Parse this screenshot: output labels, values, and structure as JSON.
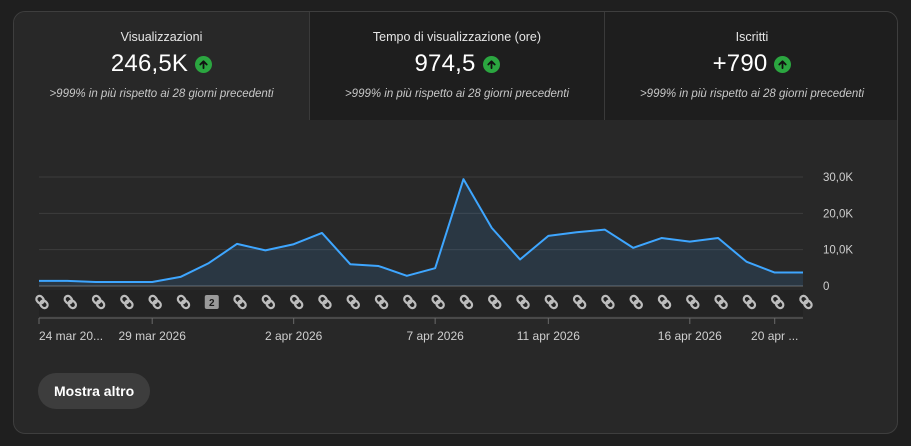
{
  "metrics": [
    {
      "label": "Visualizzazioni",
      "value": "246,5K",
      "comparison": ">999% in più rispetto ai 28 giorni precedenti"
    },
    {
      "label": "Tempo di visualizzazione (ore)",
      "value": "974,5",
      "comparison": ">999% in più rispetto ai 28 giorni precedenti"
    },
    {
      "label": "Iscritti",
      "value": "+790",
      "comparison": ">999% in più rispetto ai 28 giorni precedenti"
    }
  ],
  "chart_data": {
    "type": "area",
    "y_ticks": [
      "30,0K",
      "20,0K",
      "10,0K",
      "0"
    ],
    "ylim": [
      0,
      30000
    ],
    "grid": true,
    "x_labels": [
      {
        "index": 0,
        "label": "24 mar 20..."
      },
      {
        "index": 4,
        "label": "29 mar 2026"
      },
      {
        "index": 9,
        "label": "2 apr 2026"
      },
      {
        "index": 14,
        "label": "7 apr 2026"
      },
      {
        "index": 18,
        "label": "11 apr 2026"
      },
      {
        "index": 23,
        "label": "16 apr 2026"
      },
      {
        "index": 26,
        "label": "20 apr ..."
      }
    ],
    "series": [
      {
        "values": [
          1400,
          1400,
          1100,
          1100,
          1100,
          2500,
          6300,
          11600,
          9800,
          11500,
          14600,
          6000,
          5500,
          2800,
          4900,
          29400,
          16000,
          7300,
          13800,
          14800,
          15500,
          10500,
          13200,
          12200,
          13200,
          6700,
          3700,
          3700
        ]
      }
    ],
    "markers": [
      {
        "type": "shorts-icon",
        "count": 28
      },
      {
        "type": "badge",
        "index": 6,
        "label": "2"
      }
    ]
  },
  "actions": {
    "more_label": "Mostra altro"
  },
  "colors": {
    "line": "#3ea6ff",
    "up": "#2ba640"
  }
}
